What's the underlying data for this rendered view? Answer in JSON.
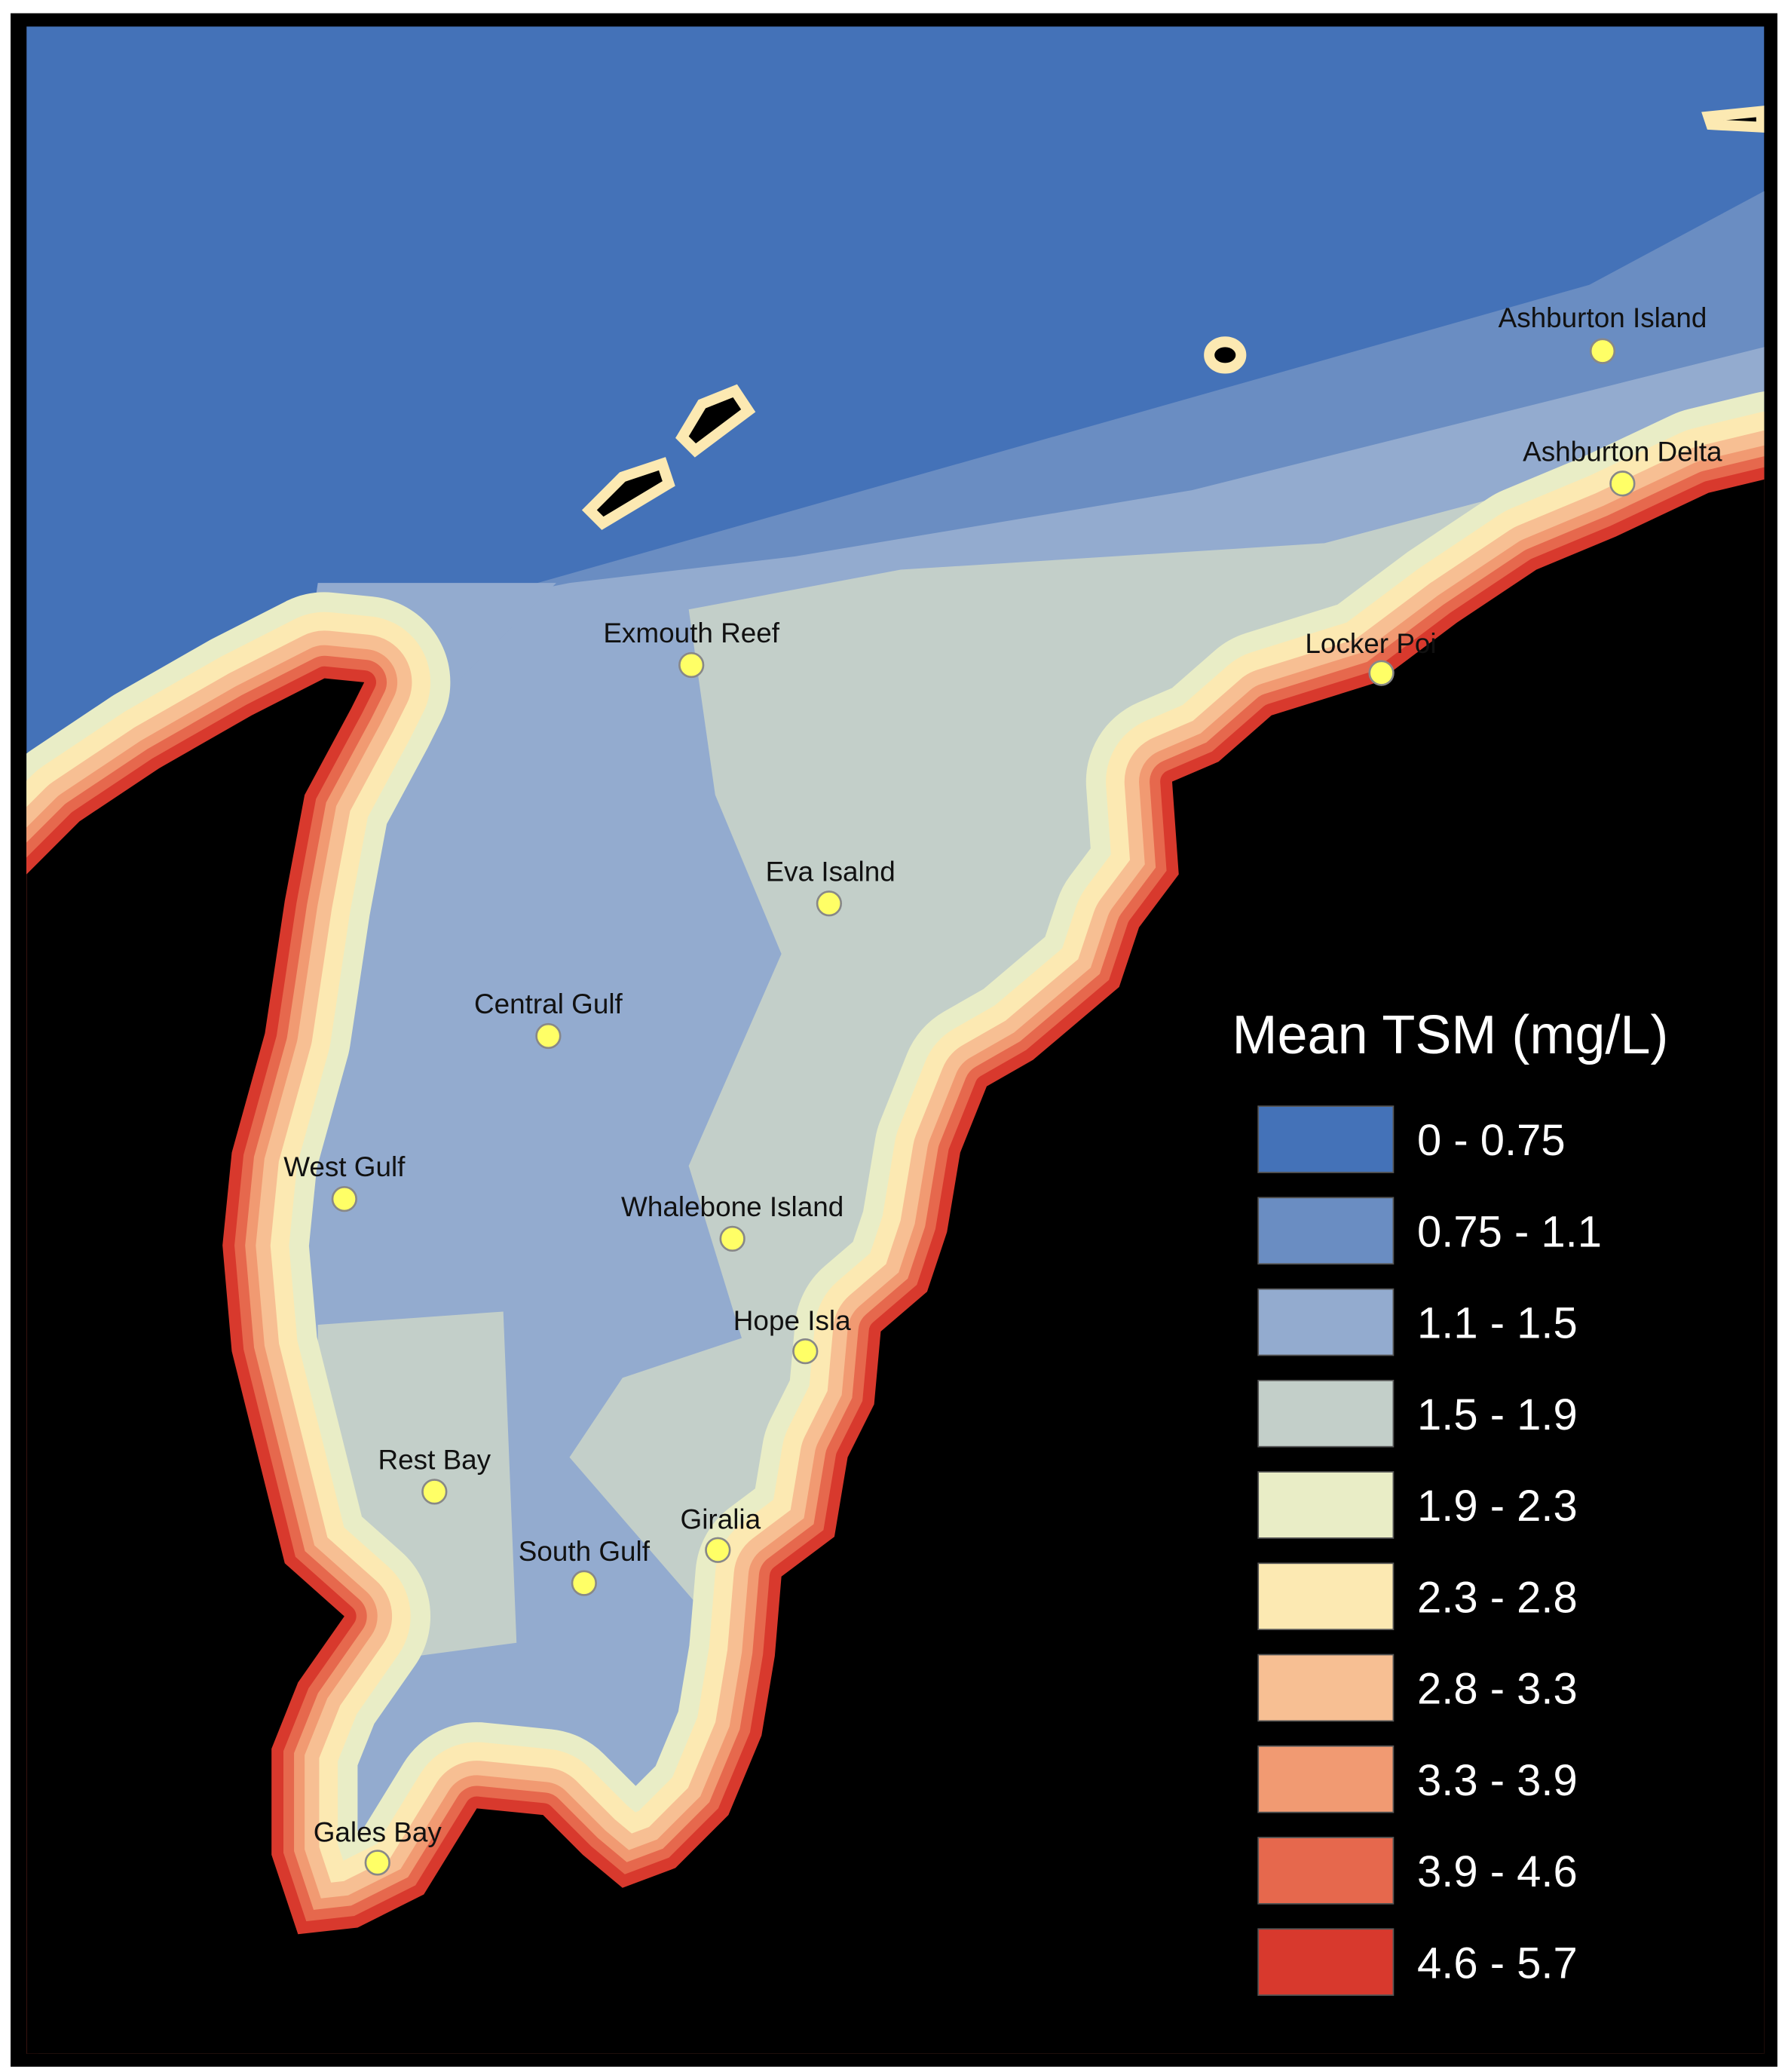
{
  "legend": {
    "title": "Mean TSM (mg/L)",
    "items": [
      {
        "label": "0 - 0.75",
        "color": "#4472b8"
      },
      {
        "label": "0.75 - 1.1",
        "color": "#6a8dc2"
      },
      {
        "label": "1.1 - 1.5",
        "color": "#93abcf"
      },
      {
        "label": "1.5 - 1.9",
        "color": "#c3cfc9"
      },
      {
        "label": "1.9 - 2.3",
        "color": "#e9edc6"
      },
      {
        "label": "2.3 - 2.8",
        "color": "#fce9b2"
      },
      {
        "label": "2.8 - 3.3",
        "color": "#f7bf93"
      },
      {
        "label": "3.3 - 3.9",
        "color": "#f19a72"
      },
      {
        "label": "3.9 - 4.6",
        "color": "#e6684d"
      },
      {
        "label": "4.6 - 5.7",
        "color": "#d8392d"
      }
    ]
  },
  "sites": [
    {
      "label": "Ashburton Island"
    },
    {
      "label": "Ashburton Delta"
    },
    {
      "label": "Locker Poi"
    },
    {
      "label": "Exmouth Reef"
    },
    {
      "label": "Eva Isalnd"
    },
    {
      "label": "Central Gulf"
    },
    {
      "label": "West Gulf"
    },
    {
      "label": "Whalebone Island"
    },
    {
      "label": "Hope Isla"
    },
    {
      "label": "Rest Bay"
    },
    {
      "label": "Giralia"
    },
    {
      "label": "South Gulf"
    },
    {
      "label": "Gales Bay"
    }
  ]
}
